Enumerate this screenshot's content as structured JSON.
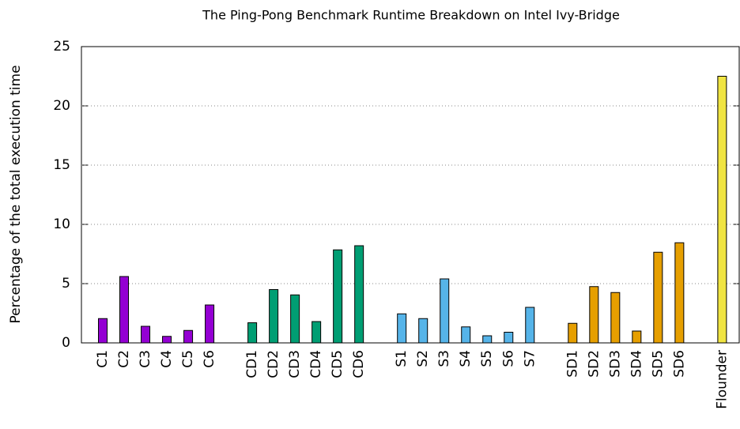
{
  "chart_data": {
    "type": "bar",
    "title": "The Ping-Pong Benchmark Runtime Breakdown on Intel Ivy-Bridge",
    "y_label": "Percentage of the total execution time",
    "categories": [
      "C1",
      "C2",
      "C3",
      "C4",
      "C5",
      "C6",
      null,
      "CD1",
      "CD2",
      "CD3",
      "CD4",
      "CD5",
      "CD6",
      null,
      "S1",
      "S2",
      "S3",
      "S4",
      "S5",
      "S6",
      "S7",
      null,
      "SD1",
      "SD2",
      "SD3",
      "SD4",
      "SD5",
      "SD6",
      null,
      "Flounder"
    ],
    "values": [
      2.05,
      5.6,
      1.4,
      0.55,
      1.05,
      3.2,
      null,
      1.7,
      4.5,
      4.05,
      1.8,
      7.85,
      8.2,
      null,
      2.45,
      2.05,
      5.4,
      1.35,
      0.6,
      0.9,
      3.0,
      null,
      1.65,
      4.75,
      4.25,
      1.0,
      7.65,
      8.45,
      null,
      22.5
    ],
    "colors": [
      "#9400d3",
      "#9400d3",
      "#9400d3",
      "#9400d3",
      "#9400d3",
      "#9400d3",
      null,
      "#009e73",
      "#009e73",
      "#009e73",
      "#009e73",
      "#009e73",
      "#009e73",
      null,
      "#56b4e9",
      "#56b4e9",
      "#56b4e9",
      "#56b4e9",
      "#56b4e9",
      "#56b4e9",
      "#56b4e9",
      null,
      "#e69f00",
      "#e69f00",
      "#e69f00",
      "#e69f00",
      "#e69f00",
      "#e69f00",
      null,
      "#f0e442"
    ],
    "ylim": [
      0,
      25
    ],
    "yticks": [
      0,
      5,
      10,
      15,
      20,
      25
    ],
    "grid": true
  }
}
